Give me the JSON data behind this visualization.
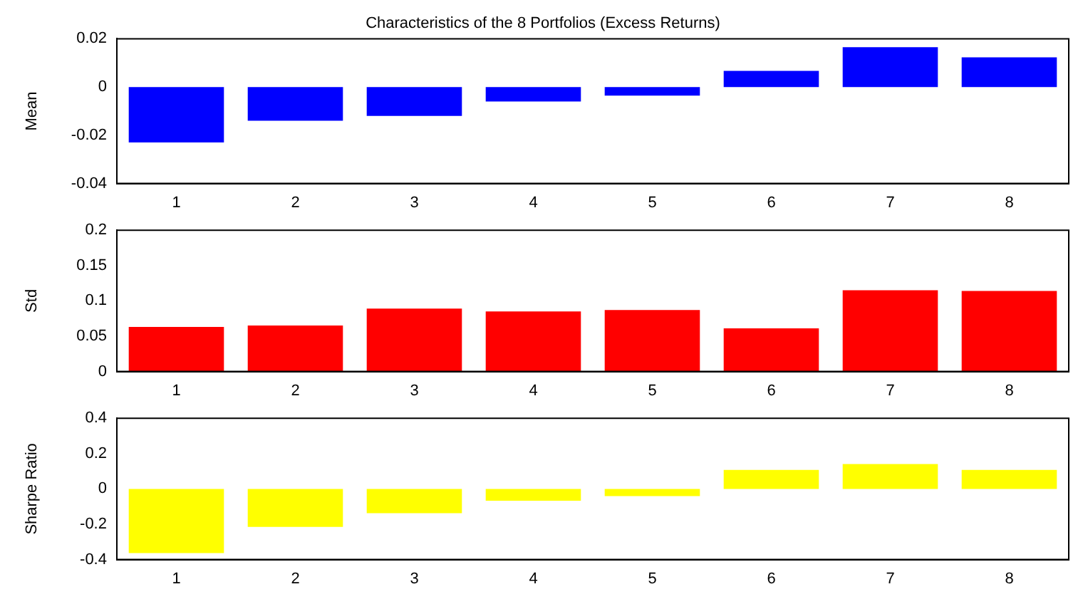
{
  "chart_data": [
    {
      "type": "bar",
      "title": "Characteristics of the 8 Portfolios (Excess Returns)",
      "ylabel": "Mean",
      "categories": [
        "1",
        "2",
        "3",
        "4",
        "5",
        "6",
        "7",
        "8"
      ],
      "values": [
        -0.023,
        -0.014,
        -0.012,
        -0.006,
        -0.0036,
        0.0067,
        0.0165,
        0.0123
      ],
      "color": "#0000ff",
      "ylim": [
        -0.04,
        0.02
      ],
      "yticks": [
        -0.04,
        -0.02,
        0,
        0.02
      ],
      "grid": false,
      "legend": false
    },
    {
      "type": "bar",
      "ylabel": "Std",
      "categories": [
        "1",
        "2",
        "3",
        "4",
        "5",
        "6",
        "7",
        "8"
      ],
      "values": [
        0.063,
        0.065,
        0.089,
        0.085,
        0.087,
        0.061,
        0.115,
        0.114
      ],
      "color": "#ff0000",
      "ylim": [
        0,
        0.2
      ],
      "yticks": [
        0,
        0.05,
        0.1,
        0.15,
        0.2
      ],
      "grid": false,
      "legend": false
    },
    {
      "type": "bar",
      "ylabel": "Sharpe Ratio",
      "categories": [
        "1",
        "2",
        "3",
        "4",
        "5",
        "6",
        "7",
        "8"
      ],
      "values": [
        -0.363,
        -0.215,
        -0.137,
        -0.067,
        -0.041,
        0.107,
        0.141,
        0.107
      ],
      "color": "#ffff00",
      "ylim": [
        -0.4,
        0.4
      ],
      "yticks": [
        -0.4,
        -0.2,
        0,
        0.2,
        0.4
      ],
      "grid": false,
      "legend": false
    }
  ]
}
